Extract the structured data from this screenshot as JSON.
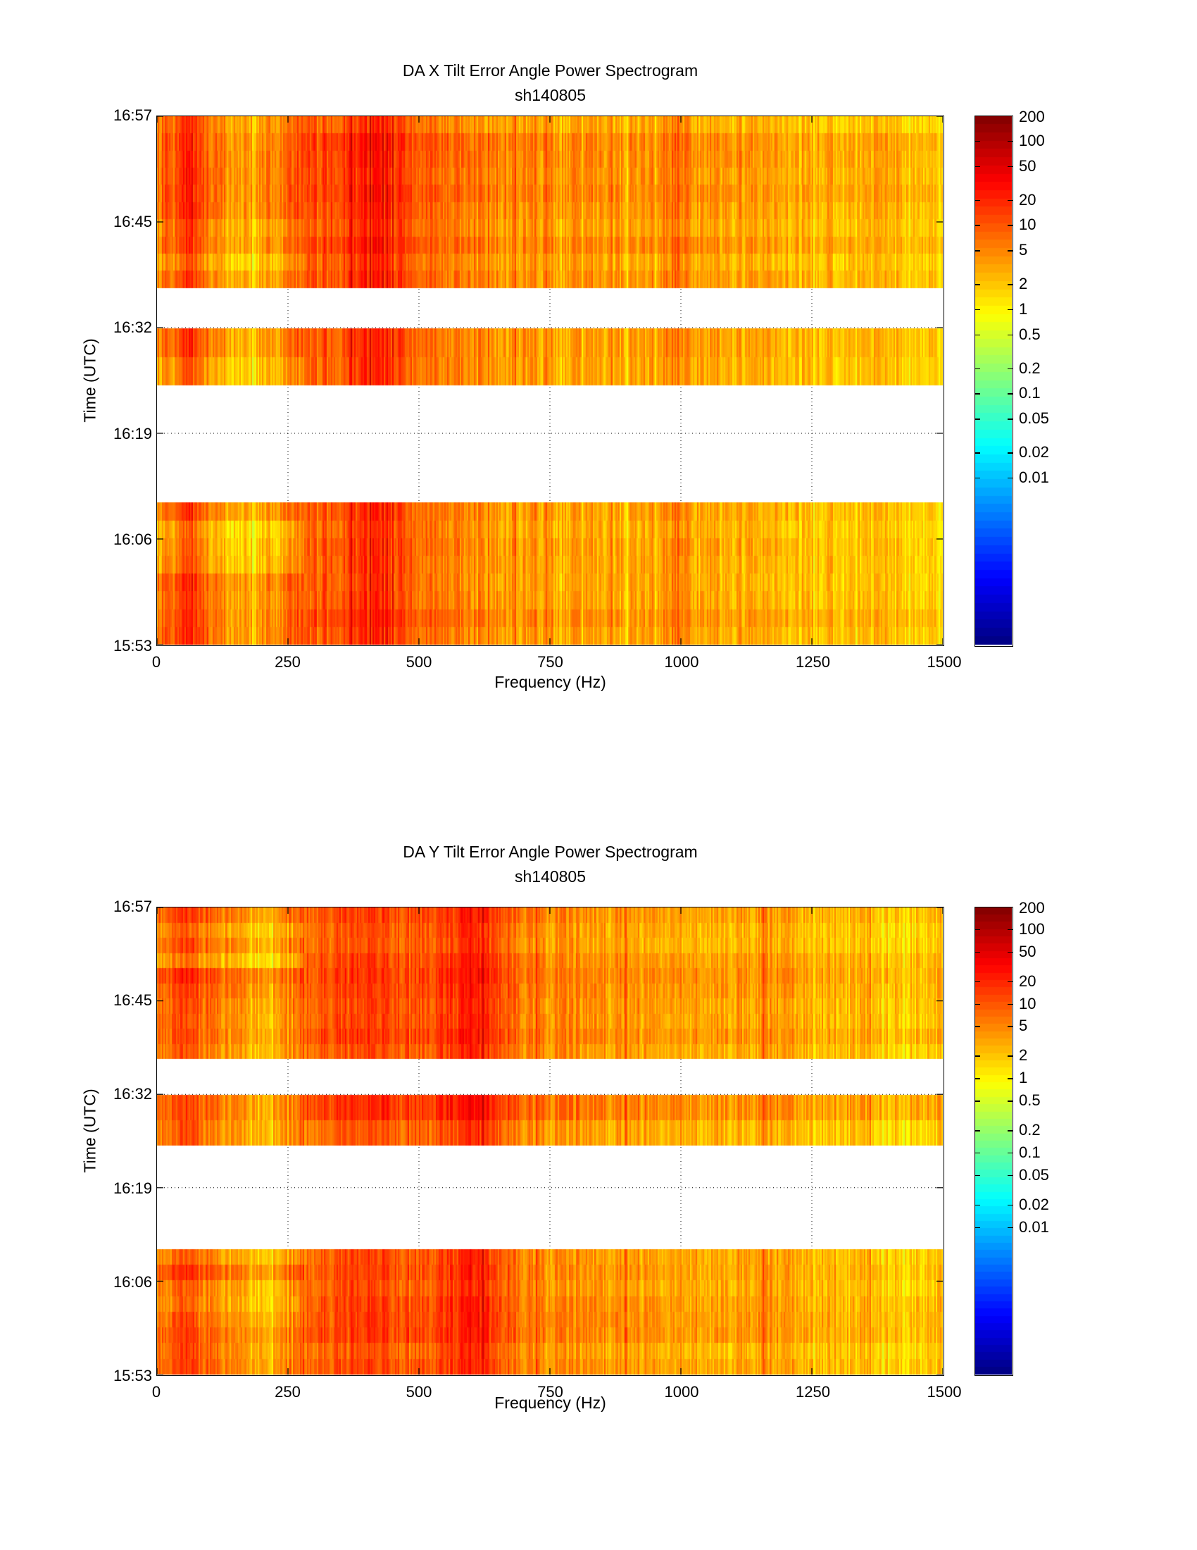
{
  "chart_data": [
    {
      "type": "heatmap",
      "title": "DA X Tilt Error Angle Power Spectrogram",
      "subtitle": "sh140805",
      "xlabel": "Frequency (Hz)",
      "ylabel": "Time (UTC)",
      "xlim": [
        0,
        1500
      ],
      "xticks": [
        0,
        250,
        500,
        750,
        1000,
        1250,
        1500
      ],
      "xtick_labels": [
        "0",
        "250",
        "500",
        "750",
        "1000",
        "1250",
        "1500"
      ],
      "ylim_minutes_after_1553": [
        0,
        64
      ],
      "ytick_labels": [
        "15:53",
        "16:06",
        "16:19",
        "16:32",
        "16:45",
        "16:57"
      ],
      "grid": true,
      "colorbar": {
        "scale": "log",
        "colormap": "jet",
        "range": [
          0.0001,
          200
        ],
        "tick_values": [
          200,
          100,
          50,
          20,
          10,
          5,
          2,
          1,
          0.5,
          0.2,
          0.1,
          0.05,
          0.02,
          0.01
        ],
        "tick_labels": [
          "200",
          "100",
          "50",
          "20",
          "10",
          "5",
          "2",
          "1",
          "0.5",
          "0.2",
          "0.1",
          "0.05",
          "0.02",
          "0.01"
        ]
      },
      "time_segments": [
        {
          "start_min": 43.2,
          "end_min": 64.0,
          "rows": 10
        },
        {
          "start_min": 31.4,
          "end_min": 38.3,
          "rows": 2
        },
        {
          "start_min": 0.0,
          "end_min": 17.2,
          "rows": 8
        }
      ],
      "spectral_profile": {
        "freq_hz": [
          0,
          20,
          40,
          60,
          80,
          100,
          130,
          160,
          200,
          240,
          260,
          300,
          350,
          400,
          420,
          450,
          480,
          520,
          560,
          600,
          640,
          700,
          800,
          900,
          960,
          990,
          1010,
          1050,
          1150,
          1250,
          1350,
          1500
        ],
        "power": [
          4,
          6,
          8,
          15,
          9,
          6,
          3.5,
          2.5,
          3,
          4,
          8,
          10,
          12,
          18,
          22,
          15,
          12,
          9,
          7,
          6,
          5,
          4,
          3.5,
          3.2,
          4,
          9,
          5,
          3.2,
          2.8,
          2.5,
          2.3,
          2
        ]
      }
    },
    {
      "type": "heatmap",
      "title": "DA Y Tilt Error Angle Power Spectrogram",
      "subtitle": "sh140805",
      "xlabel": "Frequency (Hz)",
      "ylabel": "Time (UTC)",
      "xlim": [
        0,
        1500
      ],
      "xticks": [
        0,
        250,
        500,
        750,
        1000,
        1250,
        1500
      ],
      "xtick_labels": [
        "0",
        "250",
        "500",
        "750",
        "1000",
        "1250",
        "1500"
      ],
      "ylim_minutes_after_1553": [
        0,
        64
      ],
      "ytick_labels": [
        "15:53",
        "16:06",
        "16:19",
        "16:32",
        "16:45",
        "16:57"
      ],
      "grid": true,
      "colorbar": {
        "scale": "log",
        "colormap": "jet",
        "range": [
          0.0001,
          200
        ],
        "tick_values": [
          200,
          100,
          50,
          20,
          10,
          5,
          2,
          1,
          0.5,
          0.2,
          0.1,
          0.05,
          0.02,
          0.01
        ],
        "tick_labels": [
          "200",
          "100",
          "50",
          "20",
          "10",
          "5",
          "2",
          "1",
          "0.5",
          "0.2",
          "0.1",
          "0.05",
          "0.02",
          "0.01"
        ]
      },
      "time_segments": [
        {
          "start_min": 43.2,
          "end_min": 64.0,
          "rows": 10
        },
        {
          "start_min": 31.4,
          "end_min": 38.3,
          "rows": 2
        },
        {
          "start_min": 0.0,
          "end_min": 17.2,
          "rows": 8
        }
      ],
      "spectral_profile": {
        "freq_hz": [
          0,
          30,
          60,
          100,
          150,
          200,
          250,
          290,
          320,
          360,
          400,
          450,
          500,
          560,
          600,
          620,
          640,
          680,
          720,
          800,
          900,
          1000,
          1100,
          1160,
          1250,
          1350,
          1500
        ],
        "power": [
          5,
          8,
          10,
          6,
          3,
          2,
          4,
          10,
          9,
          12,
          14,
          12,
          10,
          15,
          25,
          18,
          14,
          8,
          5,
          4.5,
          4,
          3.5,
          3.2,
          4,
          3,
          2.5,
          2
        ]
      }
    }
  ]
}
